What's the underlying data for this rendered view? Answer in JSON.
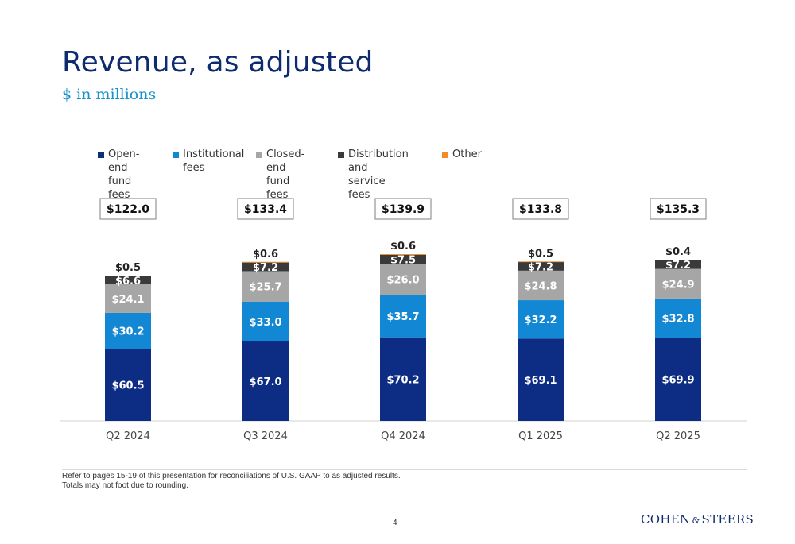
{
  "header": {
    "title": "Revenue, as adjusted",
    "subtitle": "$ in millions"
  },
  "colors": {
    "open_end": "#0d2d84",
    "institutional": "#1287d3",
    "closed_end": "#a6a6a6",
    "distribution": "#3a3a3a",
    "other": "#f28c28",
    "title": "#0d2b6e",
    "subtitle": "#1791c9"
  },
  "chart_data": {
    "type": "bar",
    "stacked": true,
    "categories": [
      "Q2 2024",
      "Q3 2024",
      "Q4 2024",
      "Q1 2025",
      "Q2 2025"
    ],
    "series": [
      {
        "name": "Open-end fund fees",
        "color": "#0d2d84",
        "values": [
          60.5,
          67.0,
          70.2,
          69.1,
          69.9
        ],
        "labels": [
          "$60.5",
          "$67.0",
          "$70.2",
          "$69.1",
          "$69.9"
        ]
      },
      {
        "name": "Institutional fees",
        "color": "#1287d3",
        "values": [
          30.2,
          33.0,
          35.7,
          32.2,
          32.8
        ],
        "labels": [
          "$30.2",
          "$33.0",
          "$35.7",
          "$32.2",
          "$32.8"
        ]
      },
      {
        "name": "Closed-end fund fees",
        "color": "#a6a6a6",
        "values": [
          24.1,
          25.7,
          26.0,
          24.8,
          24.9
        ],
        "labels": [
          "$24.1",
          "$25.7",
          "$26.0",
          "$24.8",
          "$24.9"
        ]
      },
      {
        "name": "Distribution and service fees",
        "color": "#3a3a3a",
        "values": [
          6.6,
          7.2,
          7.5,
          7.2,
          7.2
        ],
        "labels": [
          "$6.6",
          "$7.2",
          "$7.5",
          "$7.2",
          "$7.2"
        ]
      },
      {
        "name": "Other",
        "color": "#f28c28",
        "values": [
          0.5,
          0.6,
          0.6,
          0.5,
          0.4
        ],
        "labels": [
          "$0.5",
          "$0.6",
          "$0.6",
          "$0.5",
          "$0.4"
        ]
      }
    ],
    "totals": [
      "$122.0",
      "$133.4",
      "$139.9",
      "$133.8",
      "$135.3"
    ],
    "legend": [
      {
        "label": "Open-end\nfund fees",
        "color": "#0d2d84"
      },
      {
        "label": "Institutional\nfees",
        "color": "#1287d3"
      },
      {
        "label": "Closed-end\nfund fees",
        "color": "#a6a6a6"
      },
      {
        "label": "Distribution and\nservice fees",
        "color": "#3a3a3a"
      },
      {
        "label": "Other",
        "color": "#f28c28"
      }
    ],
    "legend_position": "top",
    "grid": false
  },
  "footnotes": {
    "line1": "Refer to pages 15-19 of this presentation for reconciliations of U.S. GAAP to as adjusted results.",
    "line2": "Totals may not foot due to rounding."
  },
  "page_number": "4",
  "logo": {
    "left": "COHEN",
    "amp": "&",
    "right": "STEERS"
  }
}
